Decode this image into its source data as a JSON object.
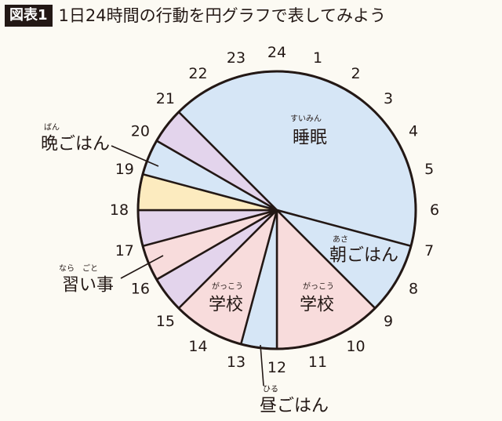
{
  "header": {
    "tag": "図表1",
    "title": "1日24時間の行動を円グラフで表してみよう"
  },
  "chart_data": {
    "type": "pie",
    "unit_hours": 24,
    "hour_ticks": [
      "24",
      "1",
      "2",
      "3",
      "4",
      "5",
      "6",
      "7",
      "8",
      "9",
      "10",
      "11",
      "12",
      "13",
      "14",
      "15",
      "16",
      "17",
      "18",
      "19",
      "20",
      "21",
      "22",
      "23"
    ],
    "segments": [
      {
        "start": 21,
        "end": 7,
        "color": "#d6e6f6"
      },
      {
        "start": 7,
        "end": 9,
        "color": "#d6e6f6"
      },
      {
        "start": 9,
        "end": 12,
        "color": "#f8dcdc"
      },
      {
        "start": 12,
        "end": 13,
        "color": "#d6e6f6"
      },
      {
        "start": 13,
        "end": 15,
        "color": "#f8dcdc"
      },
      {
        "start": 15,
        "end": 16,
        "color": "#e3d4ec"
      },
      {
        "start": 16,
        "end": 17,
        "color": "#f8dcdc"
      },
      {
        "start": 17,
        "end": 18,
        "color": "#e3d4ec"
      },
      {
        "start": 18,
        "end": 19,
        "color": "#fcebbf"
      },
      {
        "start": 19,
        "end": 20,
        "color": "#d6e6f6"
      },
      {
        "start": 20,
        "end": 21,
        "color": "#e3d4ec"
      }
    ],
    "labels": [
      {
        "id": "sleep",
        "ruby": "すいみん",
        "text": "睡眠"
      },
      {
        "id": "breakfast",
        "ruby": "あさ",
        "text": "朝ごはん"
      },
      {
        "id": "school1",
        "ruby": "がっこう",
        "text": "学校"
      },
      {
        "id": "school2",
        "ruby": "がっこう",
        "text": "学校"
      },
      {
        "id": "lunch",
        "ruby": "ひる",
        "text": "昼ごはん"
      },
      {
        "id": "dinner",
        "ruby": "ばん",
        "text": "晩ごはん"
      },
      {
        "id": "lessons",
        "ruby": "なら　ごと",
        "text": "習い事"
      }
    ]
  }
}
